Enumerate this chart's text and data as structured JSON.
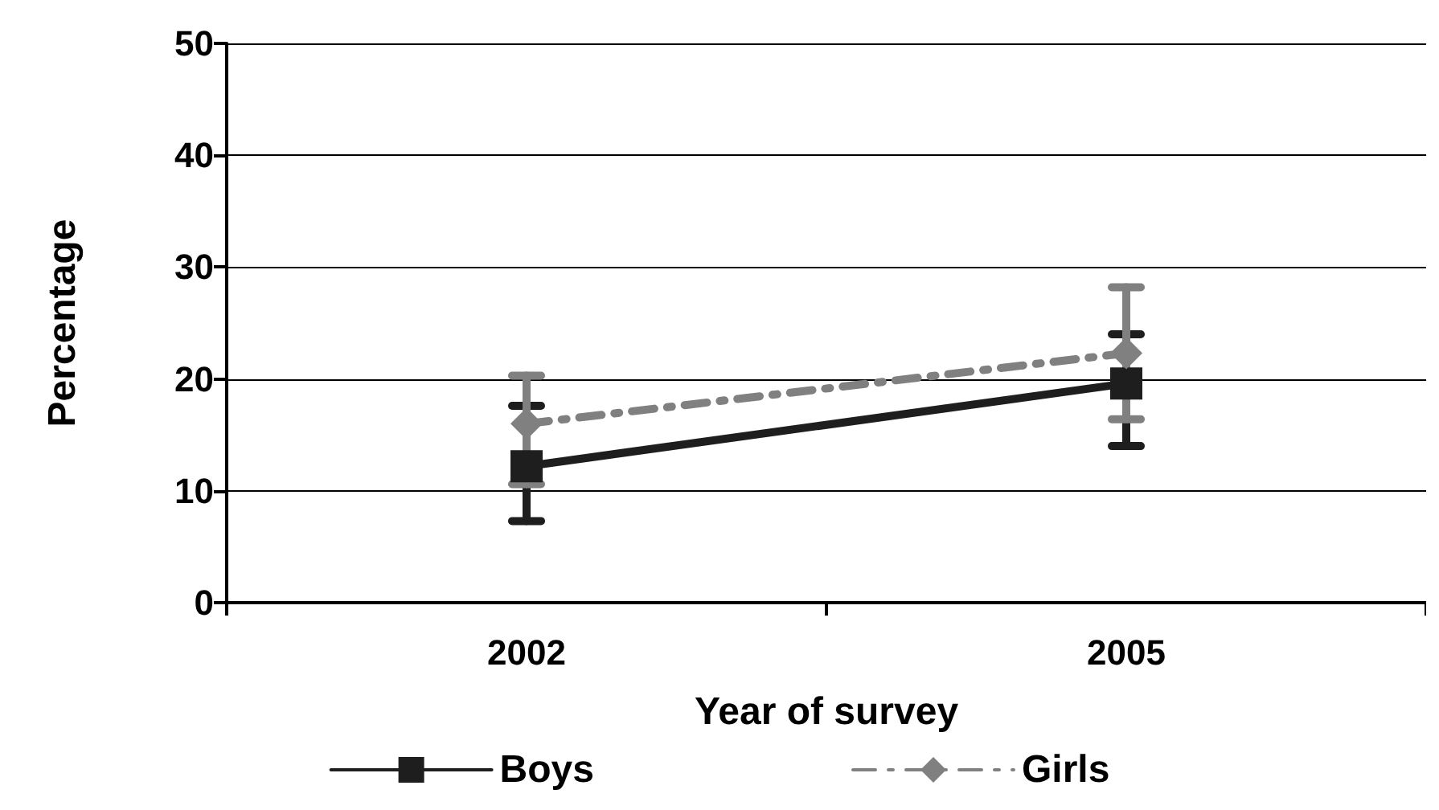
{
  "chart_data": {
    "type": "line",
    "xlabel": "Year of survey",
    "ylabel": "Percentage",
    "categories": [
      "2002",
      "2005"
    ],
    "series": [
      {
        "name": "Boys",
        "color": "#1e1e1e",
        "values": [
          12.2,
          19.6
        ],
        "errors": [
          [
            7.3,
            17.6
          ],
          [
            14.0,
            24.0
          ]
        ],
        "marker": "square",
        "line_style": "solid"
      },
      {
        "name": "Girls",
        "color": "#808080",
        "values": [
          16.0,
          22.3
        ],
        "errors": [
          [
            10.6,
            20.3
          ],
          [
            16.4,
            28.2
          ]
        ],
        "marker": "diamond",
        "line_style": "dashed"
      }
    ],
    "ylim": [
      0,
      50
    ],
    "yticks": [
      0,
      10,
      20,
      30,
      40,
      50
    ],
    "grid": "y",
    "legend": "bottom"
  }
}
